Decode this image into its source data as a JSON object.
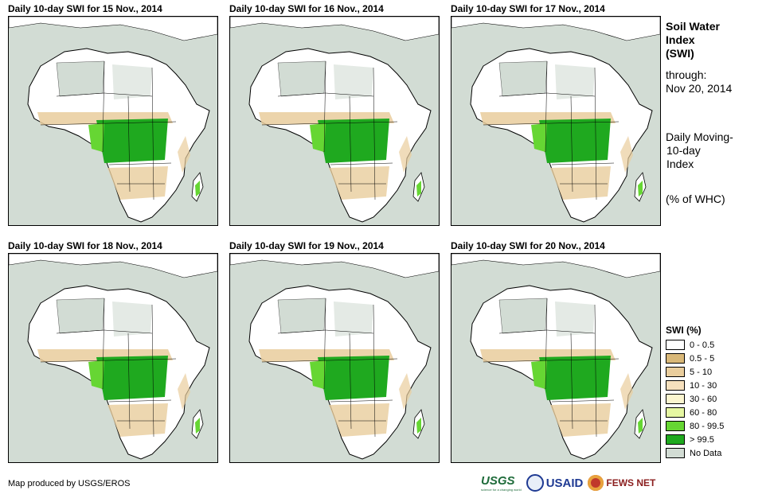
{
  "panels": [
    {
      "title": "Daily 10-day  SWI for 15 Nov., 2014"
    },
    {
      "title": "Daily 10-day  SWI for 16 Nov., 2014"
    },
    {
      "title": "Daily 10-day  SWI for 17 Nov., 2014"
    },
    {
      "title": "Daily 10-day  SWI for 18 Nov., 2014"
    },
    {
      "title": "Daily 10-day  SWI for 19 Nov., 2014"
    },
    {
      "title": "Daily 10-day  SWI for 20 Nov., 2014"
    }
  ],
  "side": {
    "title_line1": "Soil Water",
    "title_line2": "Index",
    "title_line3": "(SWI)",
    "through_label": "through:",
    "through_date": "Nov 20, 2014",
    "desc_line1": "Daily Moving-",
    "desc_line2": "10-day",
    "desc_line3": "Index",
    "unit": "(% of WHC)"
  },
  "legend": {
    "title": "SWI (%)",
    "items": [
      {
        "label": "0 - 0.5",
        "color": "#ffffff"
      },
      {
        "label": "0.5 - 5",
        "color": "#d9b878"
      },
      {
        "label": "5 - 10",
        "color": "#e9cd9c"
      },
      {
        "label": "10 - 30",
        "color": "#f6e0bd"
      },
      {
        "label": "30 - 60",
        "color": "#fbf5cf"
      },
      {
        "label": "60 - 80",
        "color": "#e6f7a2"
      },
      {
        "label": "80 - 99.5",
        "color": "#66d633"
      },
      {
        "label": "> 99.5",
        "color": "#1fa91f"
      },
      {
        "label": "No Data",
        "color": "#d2dcd4"
      }
    ]
  },
  "colors": {
    "ocean": "#d2dcd4",
    "land": "#ffffff",
    "dry": "#e9cd9c",
    "wet": "#1fa91f",
    "moist": "#66d633",
    "nodata": "#d2dcd4"
  },
  "footer": {
    "credit": "Map produced by USGS/EROS",
    "usgs": "USGS",
    "usgs_tagline": "science for a changing world",
    "usaid": "USAID",
    "fews": "FEWS NET"
  }
}
